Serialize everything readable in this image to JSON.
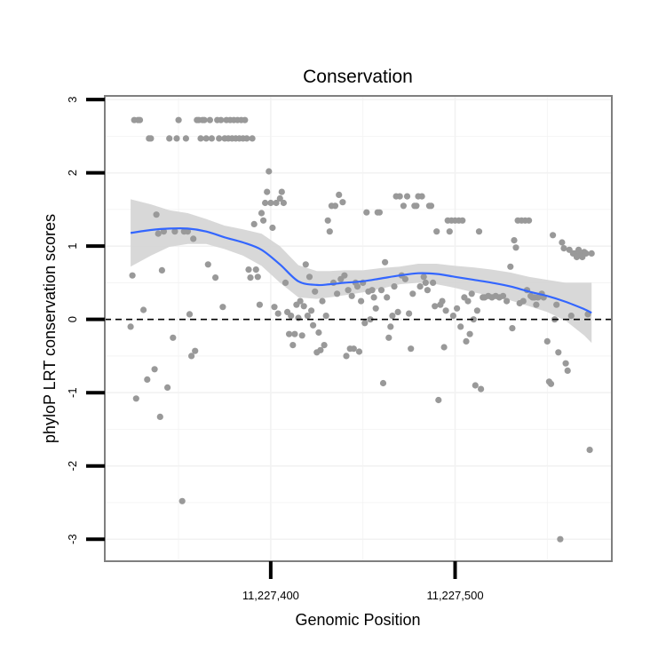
{
  "chart_data": {
    "type": "scatter",
    "title": "Conservation",
    "xlabel": "Genomic Position",
    "ylabel": "phyloP LRT conservation scores",
    "xlim": [
      11227310,
      11227585
    ],
    "ylim": [
      -3.3,
      3.05
    ],
    "x_ticks": [
      11227400,
      11227500
    ],
    "x_tick_labels": [
      "11,227,400",
      "11,227,500"
    ],
    "y_ticks": [
      -3,
      -2,
      -1,
      0,
      1,
      2,
      3
    ],
    "y_tick_labels": [
      "-3",
      "-2",
      "-1",
      "0",
      "1",
      "2",
      "3"
    ],
    "grid": true,
    "reference_line": {
      "y": 0,
      "style": "dashed"
    },
    "colors": {
      "points": "#999999",
      "smooth_line": "#3366ff",
      "confidence_band": "#d4d4d4",
      "reference_line": "#000000",
      "grid": "#f2f2f2",
      "panel_border": "#7f7f7f"
    },
    "series": [
      {
        "points": [
          [
            11227324,
            -0.1
          ],
          [
            11227325,
            0.6
          ],
          [
            11227326,
            2.72
          ],
          [
            11227327,
            -1.08
          ],
          [
            11227328,
            2.72
          ],
          [
            11227329,
            2.72
          ],
          [
            11227331,
            0.13
          ],
          [
            11227333,
            -0.82
          ],
          [
            11227334,
            2.47
          ],
          [
            11227335,
            2.47
          ],
          [
            11227337,
            -0.68
          ],
          [
            11227338,
            1.43
          ],
          [
            11227339,
            1.17
          ],
          [
            11227340,
            -1.33
          ],
          [
            11227341,
            0.67
          ],
          [
            11227342,
            1.2
          ],
          [
            11227344,
            -0.93
          ],
          [
            11227345,
            2.47
          ],
          [
            11227347,
            -0.25
          ],
          [
            11227348,
            1.2
          ],
          [
            11227349,
            2.47
          ],
          [
            11227350,
            2.72
          ],
          [
            11227352,
            -2.48
          ],
          [
            11227353,
            1.2
          ],
          [
            11227354,
            2.47
          ],
          [
            11227355,
            1.2
          ],
          [
            11227356,
            0.07
          ],
          [
            11227357,
            -0.5
          ],
          [
            11227358,
            1.1
          ],
          [
            11227359,
            -0.43
          ],
          [
            11227360,
            2.72
          ],
          [
            11227361,
            2.72
          ],
          [
            11227362,
            2.47
          ],
          [
            11227363,
            2.72
          ],
          [
            11227364,
            2.72
          ],
          [
            11227365,
            2.47
          ],
          [
            11227366,
            0.75
          ],
          [
            11227367,
            2.72
          ],
          [
            11227368,
            2.47
          ],
          [
            11227370,
            0.57
          ],
          [
            11227371,
            2.72
          ],
          [
            11227372,
            2.47
          ],
          [
            11227373,
            2.72
          ],
          [
            11227374,
            0.17
          ],
          [
            11227375,
            2.47
          ],
          [
            11227376,
            2.72
          ],
          [
            11227377,
            2.47
          ],
          [
            11227378,
            2.72
          ],
          [
            11227379,
            2.47
          ],
          [
            11227380,
            2.72
          ],
          [
            11227381,
            2.47
          ],
          [
            11227382,
            2.72
          ],
          [
            11227383,
            2.47
          ],
          [
            11227384,
            2.72
          ],
          [
            11227385,
            2.47
          ],
          [
            11227386,
            2.72
          ],
          [
            11227387,
            2.47
          ],
          [
            11227388,
            0.68
          ],
          [
            11227389,
            0.57
          ],
          [
            11227390,
            2.47
          ],
          [
            11227391,
            1.3
          ],
          [
            11227392,
            0.68
          ],
          [
            11227393,
            0.58
          ],
          [
            11227394,
            0.2
          ],
          [
            11227395,
            1.45
          ],
          [
            11227396,
            1.35
          ],
          [
            11227397,
            1.59
          ],
          [
            11227398,
            1.74
          ],
          [
            11227399,
            2.02
          ],
          [
            11227400,
            1.59
          ],
          [
            11227401,
            1.25
          ],
          [
            11227402,
            0.17
          ],
          [
            11227403,
            1.59
          ],
          [
            11227404,
            0.08
          ],
          [
            11227405,
            1.65
          ],
          [
            11227406,
            1.74
          ],
          [
            11227407,
            1.59
          ],
          [
            11227408,
            0.5
          ],
          [
            11227409,
            0.1
          ],
          [
            11227410,
            -0.2
          ],
          [
            11227411,
            0.05
          ],
          [
            11227412,
            -0.35
          ],
          [
            11227413,
            -0.2
          ],
          [
            11227414,
            0.2
          ],
          [
            11227415,
            0.02
          ],
          [
            11227416,
            0.25
          ],
          [
            11227417,
            -0.22
          ],
          [
            11227418,
            0.18
          ],
          [
            11227419,
            0.75
          ],
          [
            11227420,
            0.05
          ],
          [
            11227421,
            0.58
          ],
          [
            11227422,
            0.12
          ],
          [
            11227423,
            -0.08
          ],
          [
            11227424,
            0.38
          ],
          [
            11227425,
            -0.45
          ],
          [
            11227426,
            -0.18
          ],
          [
            11227427,
            -0.42
          ],
          [
            11227428,
            0.25
          ],
          [
            11227429,
            -0.35
          ],
          [
            11227430,
            0.05
          ],
          [
            11227431,
            1.35
          ],
          [
            11227432,
            1.2
          ],
          [
            11227433,
            1.55
          ],
          [
            11227434,
            0.5
          ],
          [
            11227435,
            1.55
          ],
          [
            11227436,
            0.35
          ],
          [
            11227437,
            1.7
          ],
          [
            11227438,
            0.55
          ],
          [
            11227439,
            1.6
          ],
          [
            11227440,
            0.6
          ],
          [
            11227441,
            -0.5
          ],
          [
            11227442,
            0.4
          ],
          [
            11227443,
            -0.4
          ],
          [
            11227444,
            0.32
          ],
          [
            11227445,
            -0.4
          ],
          [
            11227446,
            0.5
          ],
          [
            11227447,
            0.45
          ],
          [
            11227448,
            -0.44
          ],
          [
            11227449,
            0.25
          ],
          [
            11227450,
            0.5
          ],
          [
            11227451,
            -0.05
          ],
          [
            11227452,
            1.46
          ],
          [
            11227453,
            0.38
          ],
          [
            11227454,
            0.0
          ],
          [
            11227455,
            0.4
          ],
          [
            11227456,
            0.3
          ],
          [
            11227457,
            0.15
          ],
          [
            11227458,
            1.46
          ],
          [
            11227459,
            1.46
          ],
          [
            11227460,
            0.4
          ],
          [
            11227461,
            -0.87
          ],
          [
            11227462,
            0.78
          ],
          [
            11227463,
            0.3
          ],
          [
            11227464,
            -0.25
          ],
          [
            11227465,
            -0.1
          ],
          [
            11227466,
            0.05
          ],
          [
            11227467,
            0.45
          ],
          [
            11227468,
            1.68
          ],
          [
            11227469,
            0.1
          ],
          [
            11227470,
            1.68
          ],
          [
            11227471,
            0.6
          ],
          [
            11227472,
            1.55
          ],
          [
            11227473,
            0.55
          ],
          [
            11227474,
            1.68
          ],
          [
            11227475,
            0.08
          ],
          [
            11227476,
            -0.4
          ],
          [
            11227477,
            0.35
          ],
          [
            11227478,
            1.55
          ],
          [
            11227479,
            1.55
          ],
          [
            11227480,
            1.68
          ],
          [
            11227481,
            0.45
          ],
          [
            11227482,
            1.68
          ],
          [
            11227483,
            0.58
          ],
          [
            11227484,
            0.5
          ],
          [
            11227485,
            0.4
          ],
          [
            11227486,
            1.55
          ],
          [
            11227487,
            1.55
          ],
          [
            11227488,
            0.5
          ],
          [
            11227489,
            0.18
          ],
          [
            11227490,
            1.2
          ],
          [
            11227491,
            -1.1
          ],
          [
            11227492,
            0.2
          ],
          [
            11227493,
            0.25
          ],
          [
            11227494,
            -0.38
          ],
          [
            11227495,
            0.12
          ],
          [
            11227496,
            1.35
          ],
          [
            11227497,
            1.2
          ],
          [
            11227498,
            1.35
          ],
          [
            11227499,
            0.05
          ],
          [
            11227500,
            1.35
          ],
          [
            11227501,
            0.15
          ],
          [
            11227502,
            1.35
          ],
          [
            11227503,
            -0.1
          ],
          [
            11227504,
            1.35
          ],
          [
            11227505,
            0.3
          ],
          [
            11227506,
            -0.3
          ],
          [
            11227507,
            0.25
          ],
          [
            11227508,
            -0.2
          ],
          [
            11227509,
            0.35
          ],
          [
            11227510,
            0.0
          ],
          [
            11227511,
            -0.9
          ],
          [
            11227512,
            0.12
          ],
          [
            11227513,
            1.2
          ],
          [
            11227514,
            -0.95
          ],
          [
            11227515,
            0.3
          ],
          [
            11227516,
            0.3
          ],
          [
            11227518,
            0.32
          ],
          [
            11227520,
            0.3
          ],
          [
            11227522,
            0.32
          ],
          [
            11227524,
            0.3
          ],
          [
            11227526,
            0.32
          ],
          [
            11227528,
            0.25
          ],
          [
            11227530,
            0.72
          ],
          [
            11227531,
            -0.12
          ],
          [
            11227532,
            1.08
          ],
          [
            11227533,
            0.98
          ],
          [
            11227534,
            1.35
          ],
          [
            11227535,
            0.22
          ],
          [
            11227536,
            1.35
          ],
          [
            11227537,
            0.25
          ],
          [
            11227538,
            1.35
          ],
          [
            11227539,
            0.4
          ],
          [
            11227540,
            1.35
          ],
          [
            11227541,
            0.32
          ],
          [
            11227542,
            0.3
          ],
          [
            11227543,
            0.3
          ],
          [
            11227544,
            0.2
          ],
          [
            11227545,
            0.3
          ],
          [
            11227546,
            0.32
          ],
          [
            11227547,
            0.35
          ],
          [
            11227548,
            0.3
          ],
          [
            11227550,
            -0.3
          ],
          [
            11227551,
            -0.85
          ],
          [
            11227552,
            -0.88
          ],
          [
            11227553,
            1.15
          ],
          [
            11227554,
            0.0
          ],
          [
            11227555,
            0.2
          ],
          [
            11227556,
            -0.45
          ],
          [
            11227557,
            -3.0
          ],
          [
            11227558,
            1.05
          ],
          [
            11227559,
            0.97
          ],
          [
            11227560,
            -0.6
          ],
          [
            11227561,
            -0.7
          ],
          [
            11227562,
            0.95
          ],
          [
            11227563,
            0.05
          ],
          [
            11227564,
            0.9
          ],
          [
            11227565,
            0.9
          ],
          [
            11227566,
            0.85
          ],
          [
            11227567,
            0.95
          ],
          [
            11227568,
            0.88
          ],
          [
            11227569,
            0.85
          ],
          [
            11227570,
            0.92
          ],
          [
            11227571,
            0.9
          ],
          [
            11227572,
            0.07
          ],
          [
            11227573,
            -1.78
          ],
          [
            11227574,
            0.9
          ]
        ]
      }
    ],
    "smooth": {
      "x": [
        11227324,
        11227335,
        11227345,
        11227355,
        11227365,
        11227375,
        11227385,
        11227395,
        11227405,
        11227415,
        11227425,
        11227432,
        11227440,
        11227450,
        11227460,
        11227470,
        11227480,
        11227490,
        11227500,
        11227510,
        11227520,
        11227530,
        11227540,
        11227550,
        11227560,
        11227570,
        11227574
      ],
      "y": [
        1.18,
        1.22,
        1.24,
        1.24,
        1.2,
        1.12,
        1.05,
        0.95,
        0.75,
        0.52,
        0.47,
        0.48,
        0.5,
        0.52,
        0.56,
        0.6,
        0.63,
        0.62,
        0.58,
        0.54,
        0.5,
        0.45,
        0.38,
        0.32,
        0.24,
        0.14,
        0.09
      ],
      "ci_low": [
        0.72,
        0.87,
        0.99,
        1.03,
        1.03,
        0.96,
        0.87,
        0.73,
        0.5,
        0.3,
        0.28,
        0.3,
        0.33,
        0.37,
        0.42,
        0.48,
        0.5,
        0.48,
        0.43,
        0.37,
        0.32,
        0.26,
        0.18,
        0.1,
        -0.02,
        -0.22,
        -0.32
      ],
      "ci_high": [
        1.64,
        1.57,
        1.49,
        1.45,
        1.37,
        1.28,
        1.23,
        1.17,
        1.0,
        0.74,
        0.66,
        0.66,
        0.67,
        0.67,
        0.7,
        0.72,
        0.76,
        0.76,
        0.73,
        0.71,
        0.68,
        0.64,
        0.58,
        0.54,
        0.5,
        0.5,
        0.5
      ]
    }
  }
}
